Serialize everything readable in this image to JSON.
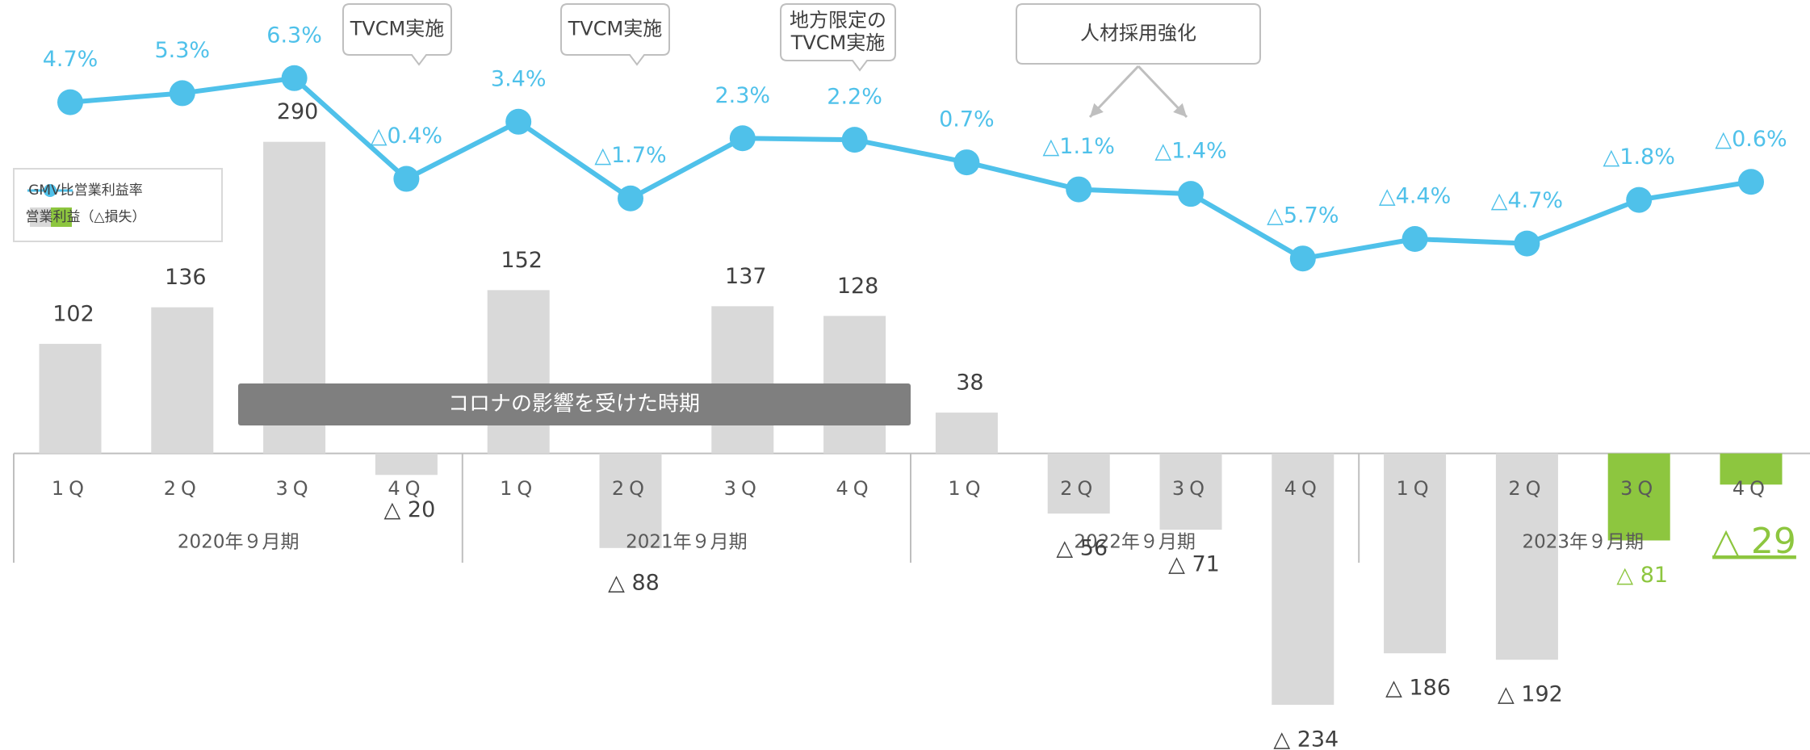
{
  "chart_data": {
    "type": "bar_line",
    "categories": [
      "1Q",
      "2Q",
      "3Q",
      "4Q",
      "1Q",
      "2Q",
      "3Q",
      "4Q",
      "1Q",
      "2Q",
      "3Q",
      "4Q",
      "1Q",
      "2Q",
      "3Q",
      "4Q"
    ],
    "groups": [
      "2020年９月期",
      "2021年９月期",
      "2022年９月期",
      "2023年９月期"
    ],
    "series": [
      {
        "name": "営業利益（△損失）",
        "type": "bar",
        "colors": [
          "#d9d9d9",
          "#d9d9d9",
          "#d9d9d9",
          "#d9d9d9",
          "#d9d9d9",
          "#d9d9d9",
          "#d9d9d9",
          "#d9d9d9",
          "#d9d9d9",
          "#d9d9d9",
          "#d9d9d9",
          "#d9d9d9",
          "#d9d9d9",
          "#d9d9d9",
          "#8dc63f",
          "#8dc63f"
        ],
        "values": [
          102,
          136,
          290,
          -20,
          152,
          -88,
          137,
          128,
          38,
          -56,
          -71,
          -234,
          -186,
          -192,
          -81,
          -29
        ],
        "value_labels": [
          "102",
          "136",
          "290",
          "△ 20",
          "152",
          "△ 88",
          "137",
          "128",
          "38",
          "△ 56",
          "△ 71",
          "△ 234",
          "△ 186",
          "△ 192",
          "△ 81",
          "△ 29"
        ]
      },
      {
        "name": "GMV比営業利益率",
        "type": "line",
        "color": "#4fc1ea",
        "axis": "y2",
        "values": [
          4.7,
          5.3,
          6.3,
          -0.4,
          3.4,
          -1.7,
          2.3,
          2.2,
          0.7,
          -1.1,
          -1.4,
          -5.7,
          -4.4,
          -4.7,
          -1.8,
          -0.6
        ],
        "value_labels": [
          "4.7%",
          "5.3%",
          "6.3%",
          "△0.4%",
          "3.4%",
          "△1.7%",
          "2.3%",
          "2.2%",
          "0.7%",
          "△1.1%",
          "△1.4%",
          "△5.7%",
          "△4.4%",
          "△4.7%",
          "△1.8%",
          "△0.6%"
        ]
      }
    ],
    "ylim": [
      -276,
      422
    ],
    "y2lim": [
      -38.4,
      11.5
    ],
    "annotations": [
      [
        "TVCM実施"
      ],
      [
        "TVCM実施"
      ],
      [
        "地方限定の",
        "TVCM実施"
      ],
      [
        "人材採用強化"
      ]
    ],
    "banner": "コロナの影響を受けた時期"
  }
}
